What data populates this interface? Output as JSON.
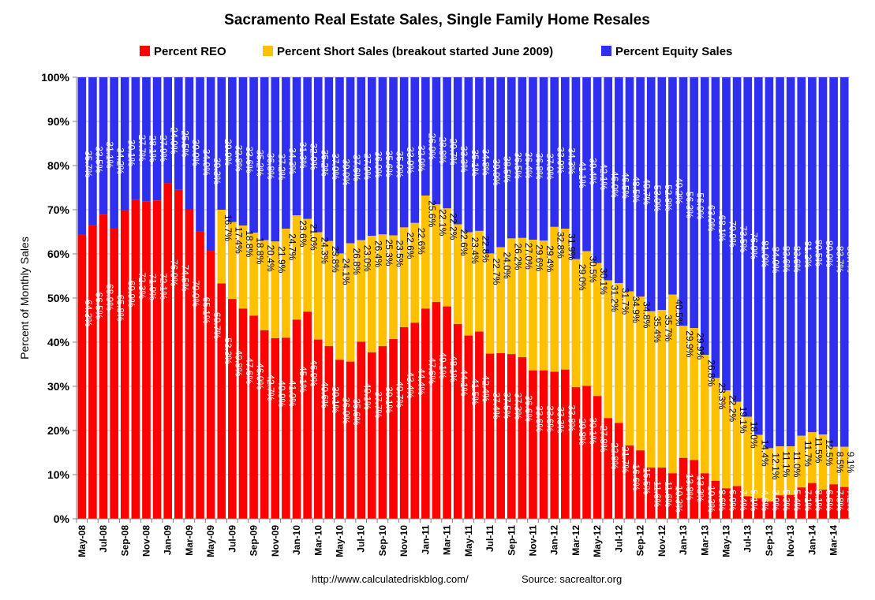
{
  "chart_data": {
    "type": "bar",
    "stacked": true,
    "title": "Sacramento Real Estate Sales, Single Family Home Resales",
    "ylabel": "Percent of Monthly Sales",
    "xlabel": "",
    "ylim": [
      0,
      100
    ],
    "yticks": [
      "0%",
      "10%",
      "20%",
      "30%",
      "40%",
      "50%",
      "60%",
      "70%",
      "80%",
      "90%",
      "100%"
    ],
    "legend_position": "top",
    "source_url": "http://www.calculatedriskblog.com/",
    "source_text": "Source:  sacrealtor.org",
    "categories": [
      "May-08",
      "Jun-08",
      "Jul-08",
      "Aug-08",
      "Sep-08",
      "Oct-08",
      "Nov-08",
      "Dec-08",
      "Jan-09",
      "Feb-09",
      "Mar-09",
      "Apr-09",
      "May-09",
      "Jun-09",
      "Jul-09",
      "Aug-09",
      "Sep-09",
      "Oct-09",
      "Nov-09",
      "Dec-09",
      "Jan-10",
      "Feb-10",
      "Mar-10",
      "Apr-10",
      "May-10",
      "Jun-10",
      "Jul-10",
      "Aug-10",
      "Sep-10",
      "Oct-10",
      "Nov-10",
      "Dec-10",
      "Jan-11",
      "Feb-11",
      "Mar-11",
      "Apr-11",
      "May-11",
      "Jun-11",
      "Jul-11",
      "Aug-11",
      "Sep-11",
      "Oct-11",
      "Nov-11",
      "Dec-11",
      "Jan-12",
      "Feb-12",
      "Mar-12",
      "Apr-12",
      "May-12",
      "Jun-12",
      "Jul-12",
      "Aug-12",
      "Sep-12",
      "Oct-12",
      "Nov-12",
      "Dec-12",
      "Jan-13",
      "Feb-13",
      "Mar-13",
      "Apr-13",
      "May-13",
      "Jun-13",
      "Jul-13",
      "Aug-13",
      "Sep-13",
      "Oct-13",
      "Nov-13",
      "Dec-13",
      "Jan-14",
      "Feb-14",
      "Mar-14",
      "Apr-14"
    ],
    "shown_xticks": [
      "May-08",
      "Jul-08",
      "Sep-08",
      "Nov-08",
      "Jan-09",
      "Mar-09",
      "May-09",
      "Jul-09",
      "Sep-09",
      "Nov-09",
      "Jan-10",
      "Mar-10",
      "May-10",
      "Jul-10",
      "Sep-10",
      "Nov-10",
      "Jan-11",
      "Mar-11",
      "May-11",
      "Jul-11",
      "Sep-11",
      "Nov-11",
      "Jan-12",
      "Mar-12",
      "May-12",
      "Jul-12",
      "Sep-12",
      "Nov-12",
      "Jan-13",
      "Mar-13",
      "May-13",
      "Jul-13",
      "Sep-13",
      "Nov-13",
      "Jan-14",
      "Mar-14"
    ],
    "series": [
      {
        "name": "Percent REO",
        "color": "#ff0000",
        "values": [
          64.3,
          66.5,
          68.9,
          65.8,
          69.9,
          72.3,
          71.9,
          72.1,
          76.0,
          74.5,
          70.0,
          65.1,
          60.7,
          53.3,
          49.8,
          47.6,
          46.0,
          42.7,
          40.9,
          41.0,
          45.1,
          46.9,
          40.6,
          39.1,
          36.0,
          35.6,
          40.1,
          37.7,
          39.1,
          40.7,
          43.4,
          44.4,
          47.6,
          49.1,
          48.1,
          44.1,
          41.5,
          42.4,
          37.4,
          37.5,
          37.3,
          36.6,
          33.6,
          33.6,
          33.3,
          33.8,
          29.8,
          30.1,
          27.8,
          22.8,
          21.7,
          16.6,
          15.5,
          11.6,
          11.6,
          10.3,
          13.8,
          13.3,
          10.3,
          8.6,
          6.9,
          7.4,
          5.1,
          4.6,
          3.9,
          5.3,
          5.4,
          7.1,
          8.1,
          6.6,
          7.8,
          7.2
        ]
      },
      {
        "name": "Percent Short Sales (breakout started June 2009)",
        "color": "#ffc000",
        "values": [
          null,
          null,
          null,
          null,
          null,
          null,
          null,
          null,
          null,
          null,
          null,
          null,
          null,
          16.7,
          17.4,
          18.8,
          18.8,
          20.4,
          21.9,
          24.7,
          23.6,
          21.0,
          24.3,
          23.8,
          24.1,
          26.8,
          23.0,
          26.4,
          25.3,
          23.5,
          22.6,
          22.6,
          25.6,
          22.1,
          22.2,
          22.6,
          23.4,
          22.8,
          22.7,
          24.0,
          26.2,
          27.0,
          29.6,
          29.4,
          32.8,
          31.9,
          29.0,
          30.5,
          30.1,
          31.2,
          31.7,
          34.9,
          34.8,
          35.4,
          35.7,
          40.5,
          29.9,
          29.9,
          26.8,
          23.3,
          22.2,
          19.1,
          18.0,
          14.4,
          12.1,
          11.1,
          11.0,
          11.7,
          11.5,
          12.5,
          8.5,
          9.1
        ]
      },
      {
        "name": "Percent Equity Sales",
        "color": "#2f2ff0",
        "values": [
          35.7,
          33.5,
          31.1,
          34.2,
          30.1,
          27.7,
          28.1,
          27.9,
          24.0,
          25.5,
          30.0,
          34.9,
          39.3,
          29.9,
          32.8,
          33.6,
          35.2,
          36.8,
          37.2,
          34.3,
          31.3,
          32.0,
          35.2,
          37.0,
          39.9,
          37.6,
          37.0,
          36.0,
          35.6,
          35.9,
          33.9,
          32.9,
          26.9,
          28.8,
          29.7,
          33.3,
          35.1,
          34.8,
          39.9,
          38.5,
          36.5,
          36.4,
          36.8,
          37.0,
          33.9,
          34.3,
          41.1,
          39.4,
          42.1,
          46.0,
          46.5,
          48.5,
          49.7,
          53.0,
          52.8,
          49.2,
          56.3,
          56.9,
          63.0,
          68.1,
          70.9,
          73.5,
          76.9,
          81.0,
          84.0,
          83.6,
          83.6,
          81.2,
          80.5,
          80.9,
          83.7,
          83.7
        ]
      }
    ]
  }
}
